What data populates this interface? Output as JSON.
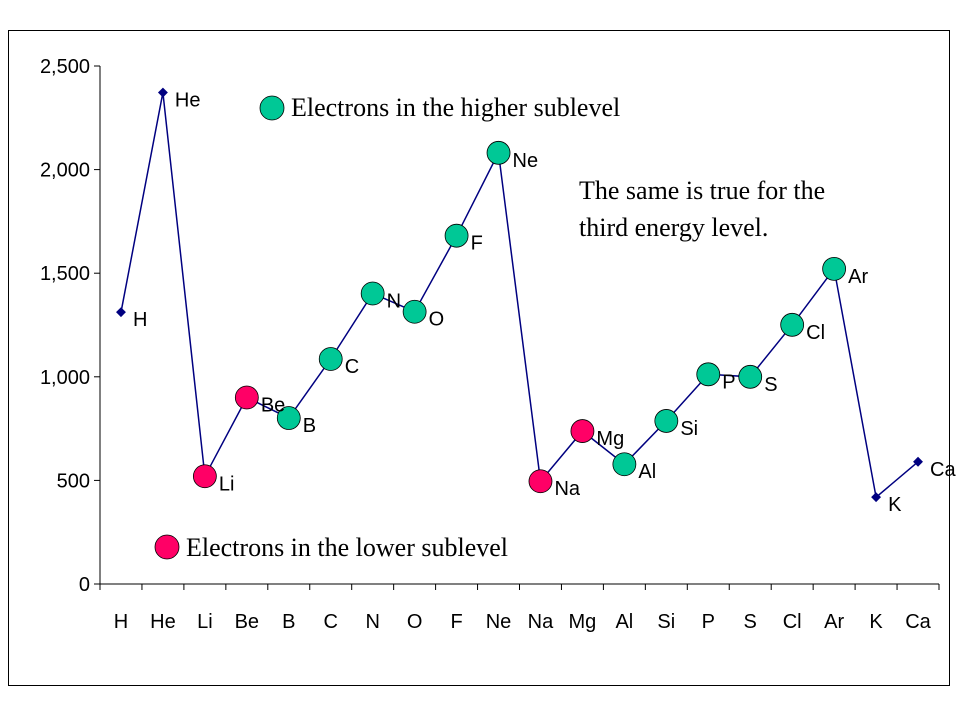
{
  "chart_data": {
    "type": "line",
    "categories": [
      "H",
      "He",
      "Li",
      "Be",
      "B",
      "C",
      "N",
      "O",
      "F",
      "Ne",
      "Na",
      "Mg",
      "Al",
      "Si",
      "P",
      "S",
      "Cl",
      "Ar",
      "K",
      "Ca"
    ],
    "values": [
      1312,
      2372,
      520,
      900,
      801,
      1086,
      1402,
      1314,
      1681,
      2081,
      496,
      738,
      578,
      787,
      1012,
      1000,
      1251,
      1521,
      419,
      590
    ],
    "point_labels": [
      "H",
      "He",
      "Li",
      "Be",
      "B",
      "C",
      "N",
      "O",
      "F",
      "Ne",
      "Na",
      "Mg",
      "Al",
      "Si",
      "P",
      "S",
      "Cl",
      "Ar",
      "K",
      "Ca"
    ],
    "marker_class": [
      "small",
      "small",
      "lower",
      "lower",
      "higher",
      "higher",
      "higher",
      "higher",
      "higher",
      "higher",
      "lower",
      "lower",
      "higher",
      "higher",
      "higher",
      "higher",
      "higher",
      "higher",
      "small",
      "small"
    ],
    "yticks": [
      0,
      500,
      1000,
      1500,
      2000,
      2500
    ],
    "ytick_labels": [
      "0",
      "500",
      "1,000",
      "1,500",
      "2,000",
      "2,500"
    ],
    "ylim": [
      0,
      2500
    ],
    "grid": false,
    "colors": {
      "line": "#000080",
      "higher": "#00C896",
      "lower": "#FF0066",
      "small": "#000080"
    }
  },
  "legend": {
    "higher": "Electrons in the higher sublevel",
    "lower": "Electrons in the lower sublevel"
  },
  "annotation": {
    "line1": "The same is true for the",
    "line2": "third energy level."
  }
}
